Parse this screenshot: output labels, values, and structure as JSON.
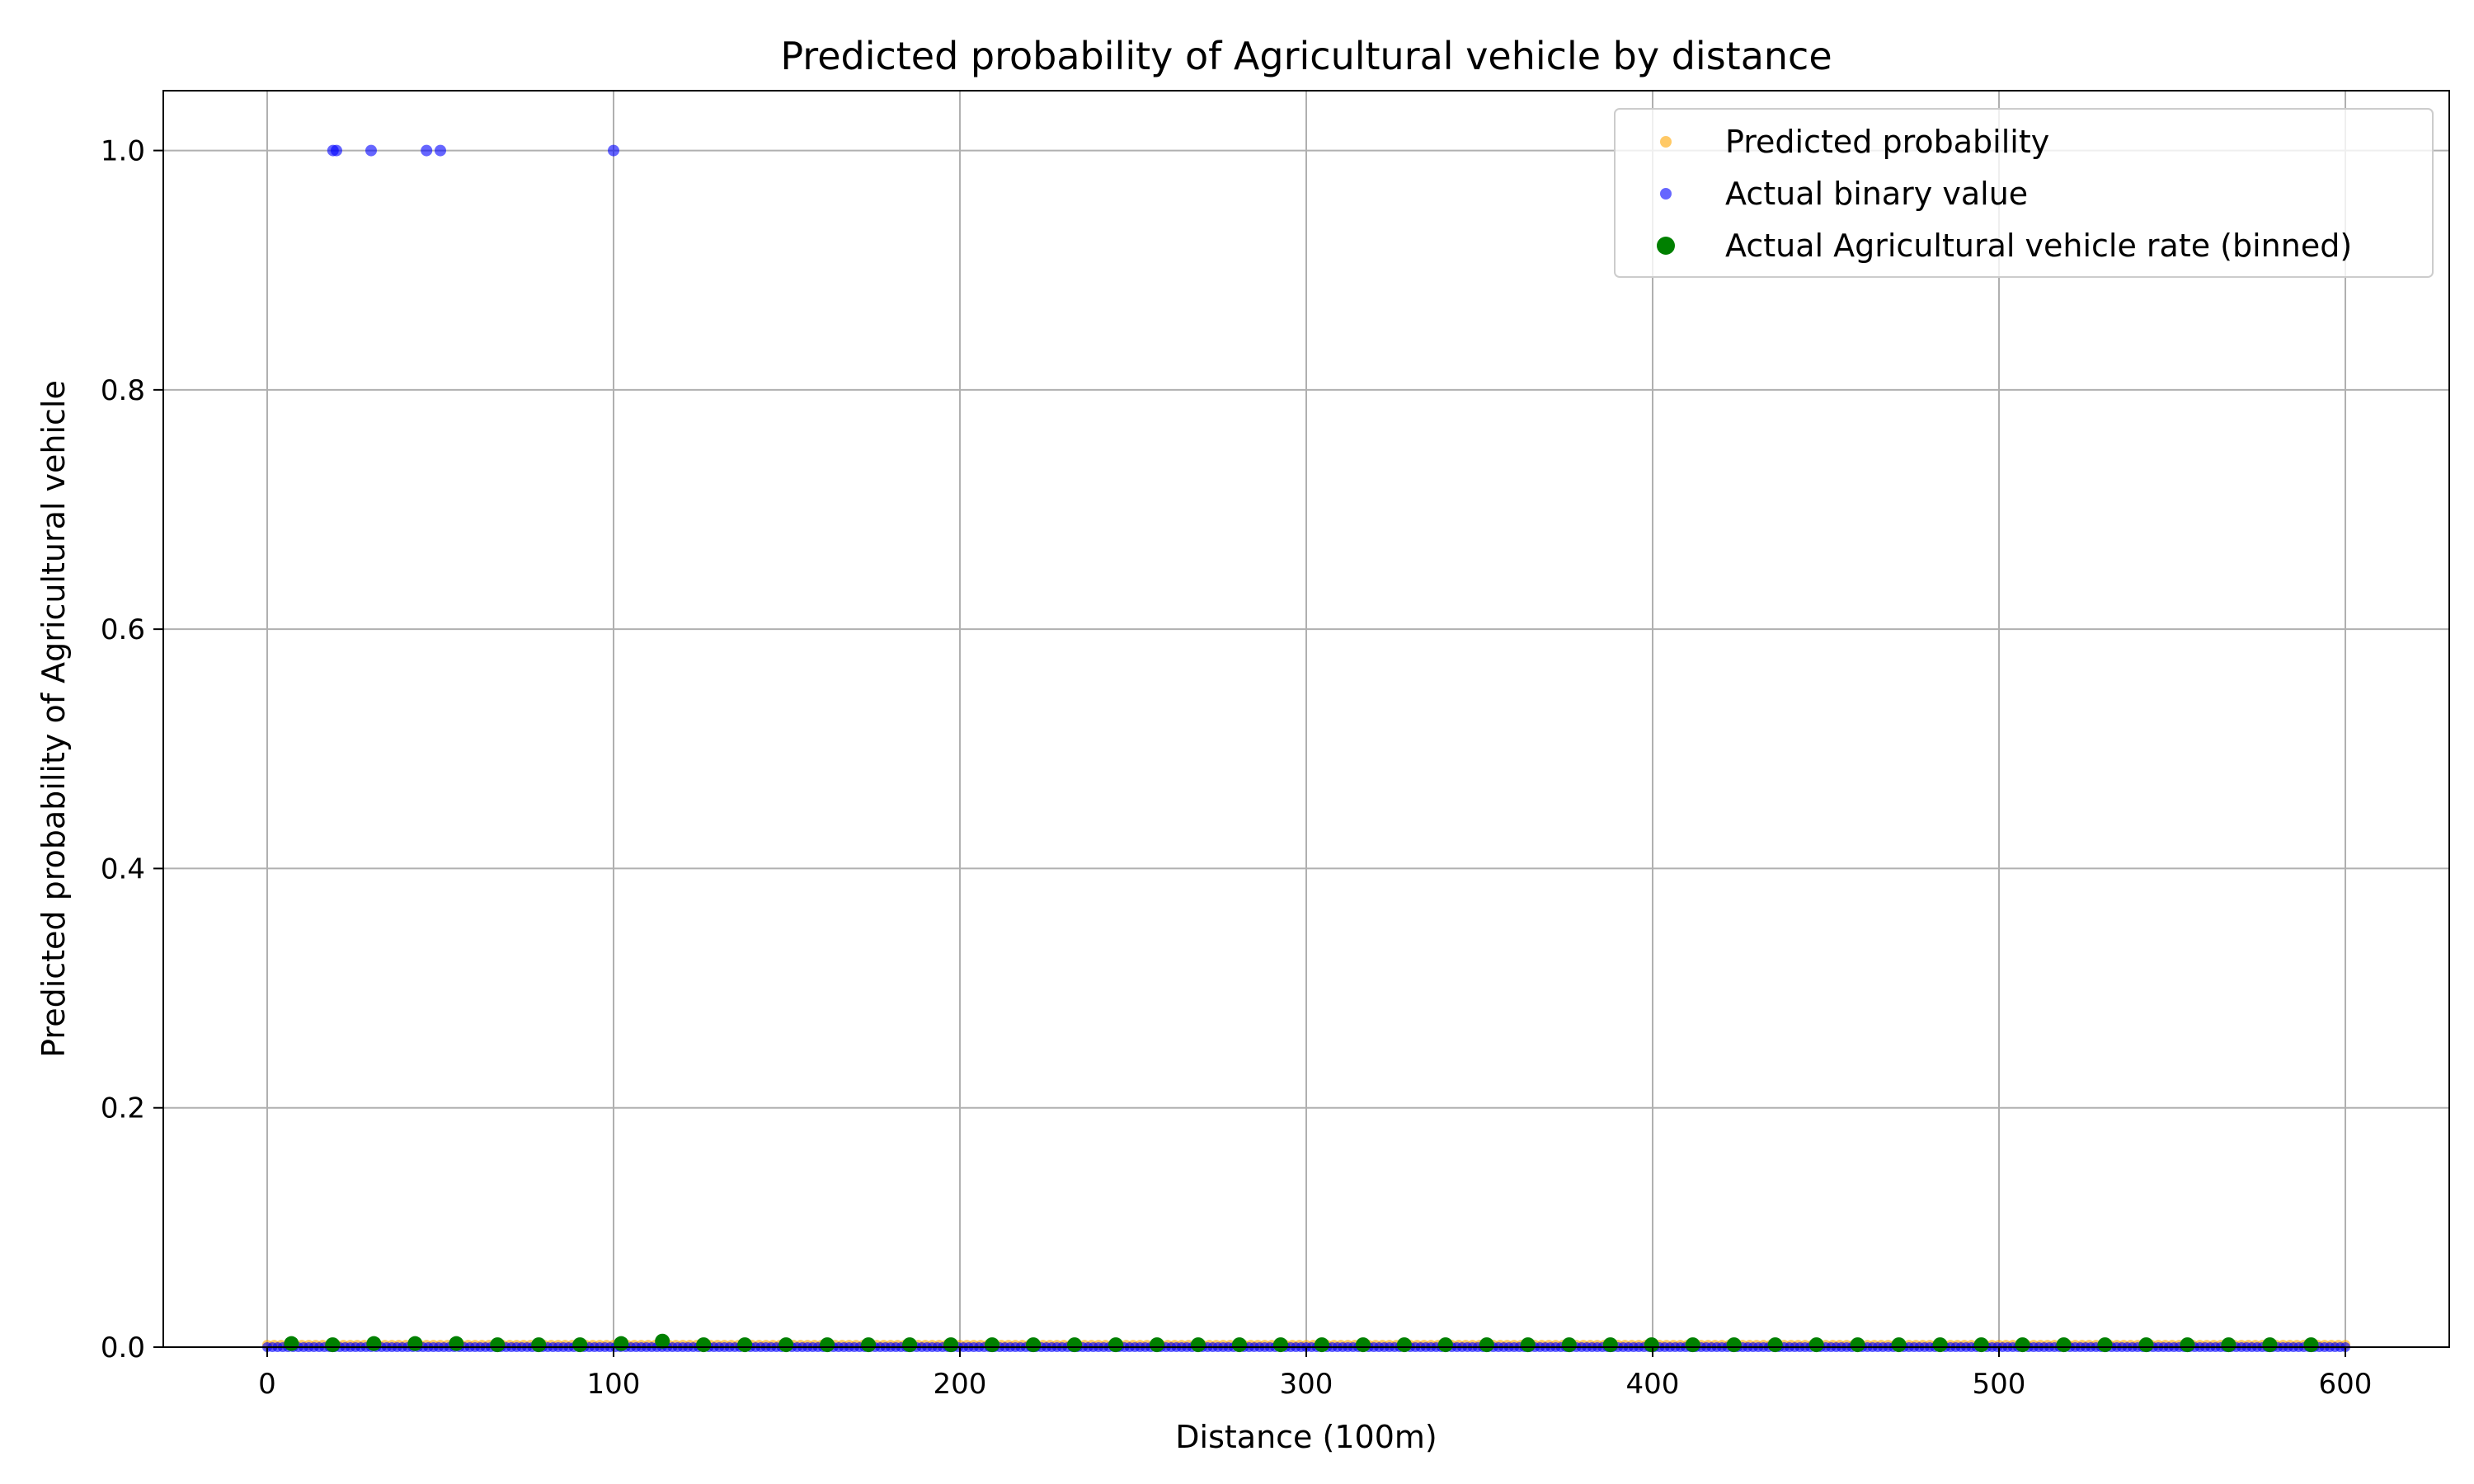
{
  "chart_data": {
    "type": "scatter",
    "title": "Predicted probability of Agricultural vehicle by distance",
    "xlabel": "Distance (100m)",
    "ylabel": "Predicted probability of Agricultural vehicle",
    "xlim": [
      -30,
      630
    ],
    "ylim": [
      0.0,
      1.05
    ],
    "x_ticks": [
      0,
      100,
      200,
      300,
      400,
      500,
      600
    ],
    "y_ticks": [
      0.0,
      0.2,
      0.4,
      0.6,
      0.8,
      1.0
    ],
    "x_tick_labels": [
      "0",
      "100",
      "200",
      "300",
      "400",
      "500",
      "600"
    ],
    "y_tick_labels": [
      "0.0",
      "0.2",
      "0.4",
      "0.6",
      "0.8",
      "1.0"
    ],
    "grid": true,
    "legend_position": "top-right",
    "series": [
      {
        "name": "Predicted probability",
        "color": "#FFA500",
        "marker_alpha": 0.6,
        "x_range": [
          0,
          600
        ],
        "y_value": 0.002,
        "note_points": "dense points along x from 0 to 600 at y ≈ 0.002"
      },
      {
        "name": "Actual binary value",
        "color": "#0000FF",
        "marker_alpha": 0.6,
        "ones_x": [
          19,
          20,
          30,
          46,
          50,
          100
        ],
        "zeros_x_range": [
          0,
          600
        ]
      },
      {
        "name": "Actual Agricultural vehicle rate (binned)",
        "color": "#008000",
        "bin_start": 7,
        "bin_step": 11.9,
        "bin_count": 50,
        "values": [
          0.003,
          0.002,
          0.003,
          0.003,
          0.003,
          0.002,
          0.002,
          0.002,
          0.003,
          0.005,
          0.002,
          0.002,
          0.002,
          0.002,
          0.002,
          0.002,
          0.002,
          0.002,
          0.002,
          0.002,
          0.002,
          0.002,
          0.002,
          0.002,
          0.002,
          0.002,
          0.002,
          0.002,
          0.002,
          0.002,
          0.002,
          0.002,
          0.002,
          0.002,
          0.002,
          0.002,
          0.002,
          0.002,
          0.002,
          0.002,
          0.002,
          0.002,
          0.002,
          0.002,
          0.002,
          0.002,
          0.002,
          0.002,
          0.002,
          0.002
        ]
      }
    ]
  }
}
